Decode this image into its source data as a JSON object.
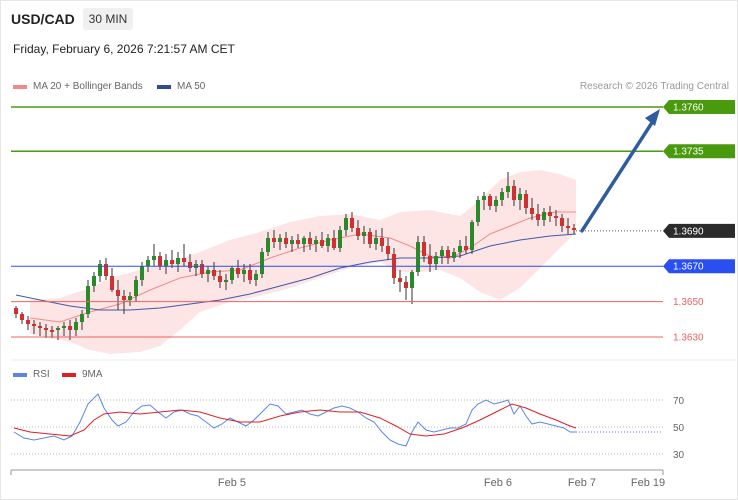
{
  "header": {
    "symbol": "USD/CAD",
    "timeframe": "30 MIN",
    "datetime": "Friday, February 6, 2026 7:21:57 AM CET"
  },
  "legend": {
    "ma20_label": "MA 20 + Bollinger Bands",
    "ma50_label": "MA 50",
    "credit": "Research © 2026 Trading Central"
  },
  "rsi_legend": {
    "rsi_label": "RSI",
    "ma_label": "9MA"
  },
  "colors": {
    "green": "#4a9a0e",
    "blue": "#2a4ff0",
    "red": "#f06060",
    "bull": "#2a8a2a",
    "bear": "#d0302f",
    "arrow": "#2e5c9e",
    "ma50": "#3d5aa8",
    "ma20": "#f08a8a",
    "band": "#fde1e1"
  },
  "chart_data": {
    "type": "candlestick",
    "title": "USD/CAD",
    "current_price": "1.3690",
    "levels": [
      {
        "value": 1.376,
        "label": "1.3760",
        "kind": "target"
      },
      {
        "value": 1.3735,
        "label": "1.3735",
        "kind": "target"
      },
      {
        "value": 1.367,
        "label": "1.3670",
        "kind": "pivot"
      },
      {
        "value": 1.365,
        "label": "1.3650",
        "kind": "support"
      },
      {
        "value": 1.363,
        "label": "1.3630",
        "kind": "support"
      }
    ],
    "x_ticks": [
      "Feb 5",
      "Feb 6",
      "Feb 7",
      "Feb 19"
    ],
    "rsi_ticks": [
      "70",
      "50",
      "30"
    ],
    "rsi_last": 50,
    "arrow": {
      "from": 1.369,
      "to": 1.376
    }
  }
}
